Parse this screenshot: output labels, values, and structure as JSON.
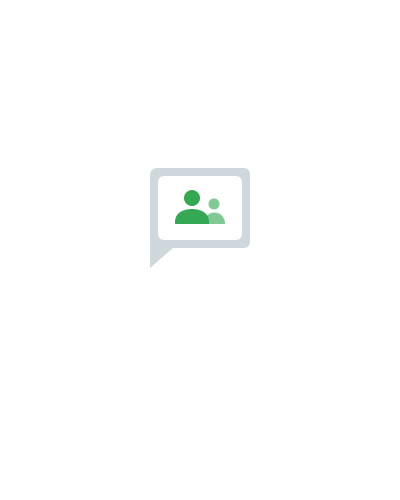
{
  "screen": {
    "background": "#ffffff"
  },
  "logo": {
    "icon": "chat-bubble-people-icon",
    "bubble_color": "#cfd8dc",
    "inner_color": "#ffffff",
    "person_primary_color": "#34a853",
    "person_secondary_color": "#81c995"
  }
}
